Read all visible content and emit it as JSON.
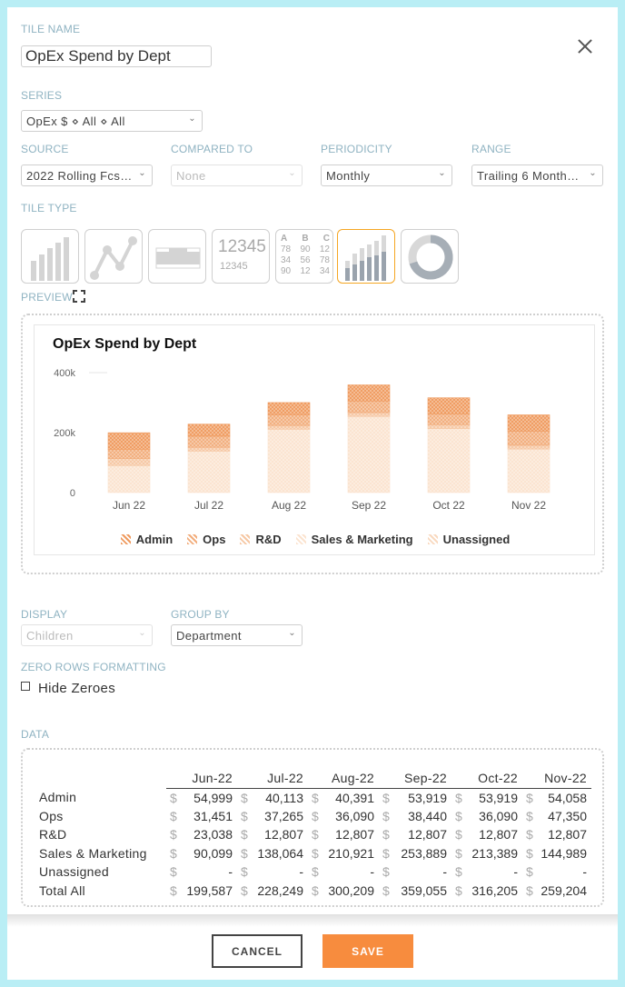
{
  "labels": {
    "tile_name": "TILE NAME",
    "series": "SERIES",
    "source": "SOURCE",
    "compared_to": "COMPARED TO",
    "periodicity": "PERIODICITY",
    "range": "RANGE",
    "tile_type": "TILE TYPE",
    "preview": "PREVIEW",
    "display": "DISPLAY",
    "group_by": "GROUP BY",
    "zero_rows": "ZERO ROWS FORMATTING",
    "data": "DATA"
  },
  "tile_name_value": "OpEx Spend by Dept",
  "series_value": "OpEx $ ⋄ All ⋄ All",
  "source_value": "2022 Rolling Fcs…",
  "compared_to_value": "None",
  "periodicity_value": "Monthly",
  "range_value": "Trailing 6 Month…",
  "display_value": "Children",
  "group_by_value": "Department",
  "tile_type_numeric": {
    "big": "12345",
    "small": "12345"
  },
  "tile_type_table": {
    "headers": [
      "A",
      "B",
      "C"
    ],
    "rows": [
      [
        "78",
        "90",
        "12"
      ],
      [
        "34",
        "56",
        "78"
      ],
      [
        "90",
        "12",
        "34"
      ]
    ]
  },
  "hide_zeroes_label": "Hide Zeroes",
  "icons": {
    "close": "close-icon",
    "expand": "expand-icon",
    "chevron": "chevron-down-icon"
  },
  "colors": {
    "accent": "#f78c3e",
    "active_border": "#f5a623",
    "label": "#8fb3c2"
  },
  "chart_data": {
    "type": "bar",
    "stacked": true,
    "title": "OpEx Spend by Dept",
    "categories": [
      "Jun 22",
      "Jul 22",
      "Aug 22",
      "Sep 22",
      "Oct 22",
      "Nov 22"
    ],
    "yticks": [
      "0",
      "200k",
      "400k"
    ],
    "ylim": [
      0,
      400000
    ],
    "series": [
      {
        "name": "Admin",
        "values": [
          54999,
          40113,
          40391,
          53919,
          53919,
          54058
        ],
        "color": "#ef9a5e"
      },
      {
        "name": "Ops",
        "values": [
          31451,
          37265,
          36090,
          38440,
          36090,
          47350
        ],
        "color": "#f2ad7c"
      },
      {
        "name": "R&D",
        "values": [
          23038,
          12807,
          12807,
          12807,
          12807,
          12807
        ],
        "color": "#f6c7a3"
      },
      {
        "name": "Sales & Marketing",
        "values": [
          90099,
          138064,
          210921,
          253889,
          213389,
          144989
        ],
        "color": "#fbe3cf"
      },
      {
        "name": "Unassigned",
        "values": [
          0,
          0,
          0,
          0,
          0,
          0
        ],
        "color": "#f9d9bf"
      }
    ],
    "legend_position": "bottom"
  },
  "table": {
    "columns": [
      "Jun-22",
      "Jul-22",
      "Aug-22",
      "Sep-22",
      "Oct-22",
      "Nov-22"
    ],
    "currency": "$",
    "rows": [
      {
        "label": "Admin",
        "values": [
          "54,999",
          "40,113",
          "40,391",
          "53,919",
          "53,919",
          "54,058"
        ]
      },
      {
        "label": "Ops",
        "values": [
          "31,451",
          "37,265",
          "36,090",
          "38,440",
          "36,090",
          "47,350"
        ]
      },
      {
        "label": "R&D",
        "values": [
          "23,038",
          "12,807",
          "12,807",
          "12,807",
          "12,807",
          "12,807"
        ]
      },
      {
        "label": "Sales & Marketing",
        "values": [
          "90,099",
          "138,064",
          "210,921",
          "253,889",
          "213,389",
          "144,989"
        ]
      },
      {
        "label": "Unassigned",
        "values": [
          "-",
          "-",
          "-",
          "-",
          "-",
          "-"
        ]
      },
      {
        "label": "Total All",
        "values": [
          "199,587",
          "228,249",
          "300,209",
          "359,055",
          "316,205",
          "259,204"
        ]
      }
    ]
  },
  "buttons": {
    "cancel": "CANCEL",
    "save": "SAVE"
  }
}
